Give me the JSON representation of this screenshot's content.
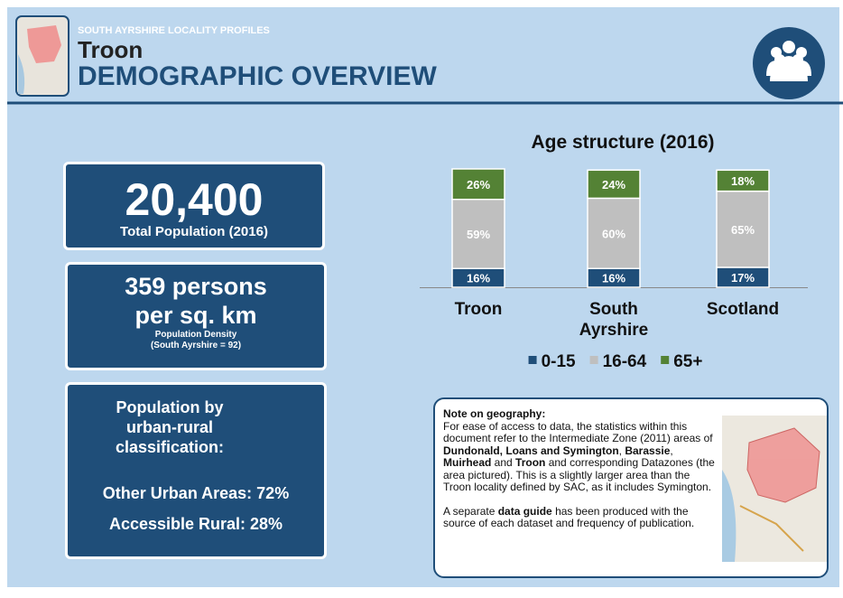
{
  "header": {
    "kicker": "SOUTH AYRSHIRE LOCALITY PROFILES",
    "place": "Troon",
    "title": "DEMOGRAPHIC OVERVIEW"
  },
  "population": {
    "value": "20,400",
    "label": "Total Population (2016)"
  },
  "density": {
    "line1": "359 persons",
    "line2": "per sq. km",
    "label": "Population Density",
    "note": "(South Ayrshire = 92)"
  },
  "classification": {
    "title": "Population by urban-rural classification:",
    "items": [
      "Other Urban Areas: 72%",
      "Accessible Rural: 28%"
    ]
  },
  "chart_data": {
    "type": "bar",
    "stacked": true,
    "title": "Age structure (2016)",
    "categories": [
      "Troon",
      "South Ayrshire",
      "Scotland"
    ],
    "series": [
      {
        "name": "0-15",
        "color": "#1f4e79",
        "values": [
          16,
          16,
          17
        ],
        "value_labels": [
          "16%",
          "16%",
          "17%"
        ]
      },
      {
        "name": "16-64",
        "color": "#bfbfbf",
        "values": [
          59,
          60,
          65
        ],
        "value_labels": [
          "59%",
          "60%",
          "65%"
        ]
      },
      {
        "name": "65+",
        "color": "#548235",
        "values": [
          26,
          24,
          18
        ],
        "value_labels": [
          "26%",
          "24%",
          "18%"
        ]
      }
    ]
  },
  "note": {
    "heading": "Note on geography:",
    "paragraphs": [
      [
        {
          "text": "For ease of access to data, the statistics within this document refer to the Intermediate Zone (2011) areas of ",
          "bold": false
        },
        {
          "text": "Dundonald, Loans and Symington",
          "bold": true
        },
        {
          "text": ", ",
          "bold": false
        },
        {
          "text": "Barassie",
          "bold": true
        },
        {
          "text": ", ",
          "bold": false
        },
        {
          "text": "Muirhead",
          "bold": true
        },
        {
          "text": " and ",
          "bold": false
        },
        {
          "text": "Troon",
          "bold": true
        },
        {
          "text": " and corresponding Datazones (the area pictured). This is a slightly larger area than the Troon locality defined by SAC, as it includes Symington.",
          "bold": false
        }
      ],
      [
        {
          "text": "A separate ",
          "bold": false
        },
        {
          "text": "data guide",
          "bold": true
        },
        {
          "text": " has been produced with the source of each dataset and frequency of publication.",
          "bold": false
        }
      ]
    ]
  }
}
